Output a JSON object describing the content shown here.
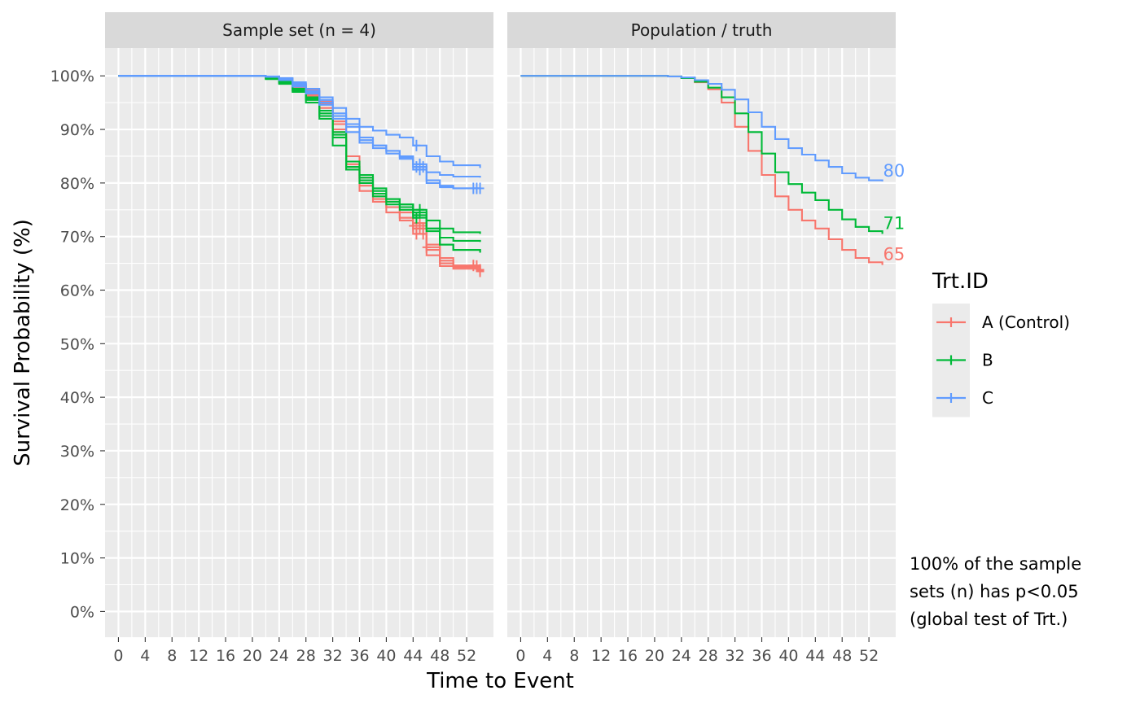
{
  "chart_data": {
    "type": "line",
    "subtype": "kaplan-meier step curves",
    "facets": [
      {
        "strip_label": "Sample set (n = 4)"
      },
      {
        "strip_label": "Population / truth"
      }
    ],
    "xlabel": "Time to Event",
    "ylabel": "Survival Probability (%)",
    "x_ticks": [
      0,
      4,
      8,
      12,
      16,
      20,
      24,
      28,
      32,
      36,
      40,
      44,
      48,
      52
    ],
    "xlim": [
      -2,
      56
    ],
    "y_ticks": [
      0,
      10,
      20,
      30,
      40,
      50,
      60,
      70,
      80,
      90,
      100
    ],
    "y_tick_labels": [
      "0%",
      "10%",
      "20%",
      "30%",
      "40%",
      "50%",
      "60%",
      "70%",
      "80%",
      "90%",
      "100%"
    ],
    "ylim": [
      -4.8,
      105.2
    ],
    "grid": true,
    "legend": {
      "title": "Trt.ID",
      "position": "right",
      "entries": [
        {
          "label": "A (Control)",
          "color": "#F8766D"
        },
        {
          "label": "B",
          "color": "#00BA38"
        },
        {
          "label": "C",
          "color": "#619CFF"
        }
      ]
    },
    "series": [
      {
        "name": "A (Control)",
        "facet": 0,
        "color": "#F8766D",
        "points": [
          [
            0,
            100
          ],
          [
            20,
            100
          ],
          [
            22,
            99.8
          ],
          [
            24,
            99.3
          ],
          [
            26,
            98.2
          ],
          [
            28,
            97
          ],
          [
            30,
            94.8
          ],
          [
            32,
            91
          ],
          [
            34,
            84
          ],
          [
            36,
            79.5
          ],
          [
            38,
            77.5
          ],
          [
            40,
            75.5
          ],
          [
            42,
            73.5
          ],
          [
            44,
            71.5
          ],
          [
            46,
            67.5
          ],
          [
            48,
            65.5
          ],
          [
            50,
            64.5
          ],
          [
            54,
            63.8
          ]
        ],
        "censor_x": [
          44.5,
          45,
          45.5,
          53.5
        ]
      },
      {
        "name": "A (Control)",
        "facet": 0,
        "color": "#F8766D",
        "points": [
          [
            0,
            100
          ],
          [
            20,
            100
          ],
          [
            22,
            99.7
          ],
          [
            24,
            99
          ],
          [
            26,
            97.8
          ],
          [
            28,
            96.5
          ],
          [
            30,
            94
          ],
          [
            32,
            89.5
          ],
          [
            34,
            82.5
          ],
          [
            36,
            78.5
          ],
          [
            38,
            76.5
          ],
          [
            40,
            74.5
          ],
          [
            42,
            73
          ],
          [
            44,
            70.5
          ],
          [
            46,
            66.5
          ],
          [
            48,
            64.5
          ],
          [
            50,
            64
          ],
          [
            54,
            63.5
          ]
        ],
        "censor_x": [
          44.5,
          45.5,
          54
        ]
      },
      {
        "name": "A (Control)",
        "facet": 0,
        "color": "#F8766D",
        "points": [
          [
            0,
            100
          ],
          [
            20,
            100
          ],
          [
            22,
            99.8
          ],
          [
            24,
            99.4
          ],
          [
            26,
            98.4
          ],
          [
            28,
            97.3
          ],
          [
            30,
            95.2
          ],
          [
            32,
            91.5
          ],
          [
            34,
            85
          ],
          [
            36,
            81
          ],
          [
            38,
            78
          ],
          [
            40,
            76.5
          ],
          [
            42,
            74.5
          ],
          [
            44,
            72.5
          ],
          [
            46,
            68.5
          ],
          [
            48,
            66
          ],
          [
            50,
            64.6
          ],
          [
            54,
            64
          ]
        ],
        "censor_x": [
          45,
          53
        ]
      },
      {
        "name": "A (Control)",
        "facet": 0,
        "color": "#F8766D",
        "points": [
          [
            0,
            100
          ],
          [
            20,
            100
          ],
          [
            22,
            99.6
          ],
          [
            24,
            99
          ],
          [
            26,
            97.5
          ],
          [
            28,
            96.2
          ],
          [
            30,
            93.5
          ],
          [
            32,
            90
          ],
          [
            34,
            83.5
          ],
          [
            36,
            80
          ],
          [
            38,
            77
          ],
          [
            40,
            75.5
          ],
          [
            42,
            73.5
          ],
          [
            44,
            72
          ],
          [
            46,
            68
          ],
          [
            48,
            65
          ],
          [
            50,
            64.3
          ],
          [
            54,
            63.8
          ]
        ],
        "censor_x": [
          44,
          46,
          54
        ]
      },
      {
        "name": "B",
        "facet": 0,
        "color": "#00BA38",
        "points": [
          [
            0,
            100
          ],
          [
            20,
            100
          ],
          [
            22,
            99.5
          ],
          [
            24,
            98.8
          ],
          [
            26,
            97.3
          ],
          [
            28,
            95.7
          ],
          [
            30,
            93
          ],
          [
            32,
            89
          ],
          [
            34,
            84
          ],
          [
            36,
            81.5
          ],
          [
            38,
            79
          ],
          [
            40,
            77
          ],
          [
            42,
            76
          ],
          [
            44,
            75
          ],
          [
            46,
            73
          ],
          [
            48,
            71.5
          ],
          [
            50,
            70.8
          ],
          [
            54,
            70.5
          ]
        ],
        "censor_x": [
          45
        ]
      },
      {
        "name": "B",
        "facet": 0,
        "color": "#00BA38",
        "points": [
          [
            0,
            100
          ],
          [
            20,
            100
          ],
          [
            22,
            99.4
          ],
          [
            24,
            98.5
          ],
          [
            26,
            97
          ],
          [
            28,
            95
          ],
          [
            30,
            92
          ],
          [
            32,
            87
          ],
          [
            34,
            82.5
          ],
          [
            36,
            80.5
          ],
          [
            38,
            78
          ],
          [
            40,
            76
          ],
          [
            42,
            75
          ],
          [
            44,
            73.5
          ],
          [
            46,
            71.5
          ],
          [
            48,
            69.8
          ],
          [
            50,
            69.2
          ],
          [
            54,
            69
          ]
        ],
        "censor_x": [
          44.5
        ]
      },
      {
        "name": "B",
        "facet": 0,
        "color": "#00BA38",
        "points": [
          [
            0,
            100
          ],
          [
            20,
            100
          ],
          [
            22,
            99.6
          ],
          [
            24,
            99
          ],
          [
            26,
            97.6
          ],
          [
            28,
            96
          ],
          [
            30,
            93.5
          ],
          [
            32,
            89.5
          ],
          [
            34,
            83
          ],
          [
            36,
            80
          ],
          [
            38,
            77.5
          ],
          [
            40,
            76.5
          ],
          [
            42,
            75.5
          ],
          [
            44,
            74.5
          ],
          [
            46,
            71.5
          ],
          [
            48,
            68.5
          ],
          [
            50,
            67.5
          ],
          [
            54,
            67
          ]
        ],
        "censor_x": [
          45
        ]
      },
      {
        "name": "B",
        "facet": 0,
        "color": "#00BA38",
        "points": [
          [
            0,
            100
          ],
          [
            20,
            100
          ],
          [
            22,
            99.5
          ],
          [
            24,
            98.7
          ],
          [
            26,
            97.2
          ],
          [
            28,
            95.5
          ],
          [
            30,
            92.5
          ],
          [
            32,
            88.5
          ],
          [
            34,
            83
          ],
          [
            36,
            81
          ],
          [
            38,
            78.5
          ],
          [
            40,
            77
          ],
          [
            42,
            76
          ],
          [
            44,
            74
          ],
          [
            46,
            71
          ],
          [
            48,
            68.5
          ],
          [
            50,
            67.5
          ],
          [
            54,
            67
          ]
        ],
        "censor_x": []
      },
      {
        "name": "C",
        "facet": 0,
        "color": "#619CFF",
        "points": [
          [
            0,
            100
          ],
          [
            20,
            100
          ],
          [
            22,
            99.9
          ],
          [
            24,
            99.6
          ],
          [
            26,
            98.8
          ],
          [
            28,
            97.6
          ],
          [
            30,
            96
          ],
          [
            32,
            94
          ],
          [
            34,
            92
          ],
          [
            36,
            90.5
          ],
          [
            38,
            89.8
          ],
          [
            40,
            89
          ],
          [
            42,
            88.5
          ],
          [
            44,
            87
          ],
          [
            46,
            85
          ],
          [
            48,
            84
          ],
          [
            50,
            83.3
          ],
          [
            54,
            82.8
          ]
        ],
        "censor_x": [
          44.5
        ]
      },
      {
        "name": "C",
        "facet": 0,
        "color": "#619CFF",
        "points": [
          [
            0,
            100
          ],
          [
            20,
            100
          ],
          [
            22,
            99.8
          ],
          [
            24,
            99.3
          ],
          [
            26,
            98.3
          ],
          [
            28,
            97
          ],
          [
            30,
            95
          ],
          [
            32,
            92.5
          ],
          [
            34,
            90.5
          ],
          [
            36,
            88
          ],
          [
            38,
            87
          ],
          [
            40,
            86
          ],
          [
            42,
            85
          ],
          [
            44,
            83.5
          ],
          [
            46,
            82
          ],
          [
            48,
            81.5
          ],
          [
            50,
            81.2
          ],
          [
            54,
            81
          ]
        ],
        "censor_x": [
          45
        ]
      },
      {
        "name": "C",
        "facet": 0,
        "color": "#619CFF",
        "points": [
          [
            0,
            100
          ],
          [
            20,
            100
          ],
          [
            22,
            99.8
          ],
          [
            24,
            99.2
          ],
          [
            26,
            98
          ],
          [
            28,
            96.7
          ],
          [
            30,
            94.6
          ],
          [
            32,
            92
          ],
          [
            34,
            89.5
          ],
          [
            36,
            87.5
          ],
          [
            38,
            86.5
          ],
          [
            40,
            85.5
          ],
          [
            42,
            84.5
          ],
          [
            44,
            83
          ],
          [
            46,
            80.5
          ],
          [
            48,
            79.5
          ],
          [
            50,
            79
          ],
          [
            54,
            79
          ]
        ],
        "censor_x": [
          44.5,
          45.5,
          53.5,
          54
        ]
      },
      {
        "name": "C",
        "facet": 0,
        "color": "#619CFF",
        "points": [
          [
            0,
            100
          ],
          [
            20,
            100
          ],
          [
            22,
            99.9
          ],
          [
            24,
            99.5
          ],
          [
            26,
            98.5
          ],
          [
            28,
            97.2
          ],
          [
            30,
            95.5
          ],
          [
            32,
            93
          ],
          [
            34,
            91
          ],
          [
            36,
            88.5
          ],
          [
            38,
            87
          ],
          [
            40,
            86
          ],
          [
            42,
            84.8
          ],
          [
            44,
            82.5
          ],
          [
            46,
            80
          ],
          [
            48,
            79.2
          ],
          [
            50,
            79
          ],
          [
            54,
            78.8
          ]
        ],
        "censor_x": [
          45,
          53
        ]
      },
      {
        "name": "A (Control)",
        "facet": 1,
        "color": "#F8766D",
        "points": [
          [
            0,
            100
          ],
          [
            20,
            100
          ],
          [
            22,
            99.9
          ],
          [
            24,
            99.6
          ],
          [
            26,
            98.8
          ],
          [
            28,
            97.5
          ],
          [
            30,
            95
          ],
          [
            32,
            90.5
          ],
          [
            34,
            86
          ],
          [
            36,
            81.5
          ],
          [
            38,
            77.5
          ],
          [
            40,
            75
          ],
          [
            42,
            73
          ],
          [
            44,
            71.5
          ],
          [
            46,
            69.5
          ],
          [
            48,
            67.5
          ],
          [
            50,
            66
          ],
          [
            52,
            65.2
          ],
          [
            54,
            64.7
          ]
        ],
        "censor_x": []
      },
      {
        "name": "B",
        "facet": 1,
        "color": "#00BA38",
        "points": [
          [
            0,
            100
          ],
          [
            20,
            100
          ],
          [
            22,
            99.9
          ],
          [
            24,
            99.6
          ],
          [
            26,
            98.9
          ],
          [
            28,
            97.8
          ],
          [
            30,
            96
          ],
          [
            32,
            93
          ],
          [
            34,
            89.5
          ],
          [
            36,
            85.5
          ],
          [
            38,
            82
          ],
          [
            40,
            79.8
          ],
          [
            42,
            78.2
          ],
          [
            44,
            76.8
          ],
          [
            46,
            75
          ],
          [
            48,
            73.2
          ],
          [
            50,
            71.8
          ],
          [
            52,
            71
          ],
          [
            54,
            70.5
          ]
        ],
        "censor_x": []
      },
      {
        "name": "C",
        "facet": 1,
        "color": "#619CFF",
        "points": [
          [
            0,
            100
          ],
          [
            20,
            100
          ],
          [
            22,
            99.9
          ],
          [
            24,
            99.7
          ],
          [
            26,
            99.2
          ],
          [
            28,
            98.5
          ],
          [
            30,
            97.4
          ],
          [
            32,
            95.6
          ],
          [
            34,
            93.2
          ],
          [
            36,
            90.5
          ],
          [
            38,
            88.2
          ],
          [
            40,
            86.5
          ],
          [
            42,
            85.3
          ],
          [
            44,
            84.2
          ],
          [
            46,
            83
          ],
          [
            48,
            81.8
          ],
          [
            50,
            81
          ],
          [
            52,
            80.5
          ],
          [
            54,
            80.3
          ]
        ],
        "censor_x": []
      }
    ],
    "end_labels": [
      {
        "text": "80",
        "x": 52.5,
        "y": 80.3,
        "color": "#619CFF",
        "facet": 1
      },
      {
        "text": "71",
        "x": 52.5,
        "y": 70.5,
        "color": "#00BA38",
        "facet": 1
      },
      {
        "text": "65",
        "x": 52.5,
        "y": 64.7,
        "color": "#F8766D",
        "facet": 1
      }
    ]
  },
  "annotation": {
    "lines": [
      "100% of the sample",
      "sets (n) has p<0.05",
      "(global test of Trt.)"
    ]
  }
}
